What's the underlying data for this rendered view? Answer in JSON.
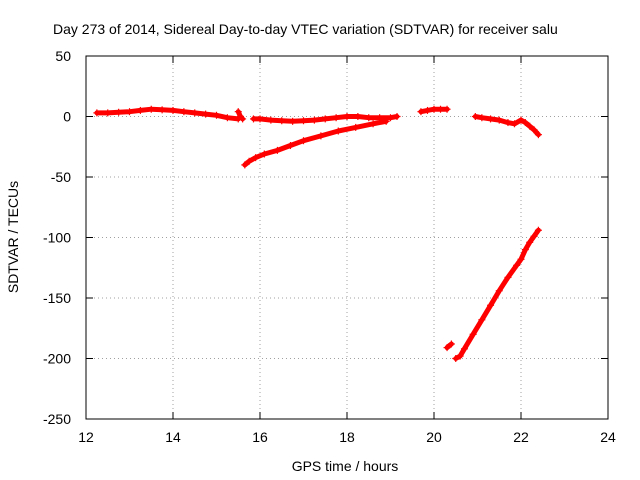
{
  "chart_data": {
    "type": "scatter",
    "title": "Day 273 of 2014, Sidereal Day-to-day VTEC variation (SDTVAR) for receiver salu",
    "xlabel": "GPS time / hours",
    "ylabel": "SDTVAR / TECUs",
    "xlim": [
      12,
      24
    ],
    "ylim": [
      -250,
      50
    ],
    "xticks": [
      12,
      14,
      16,
      18,
      20,
      22,
      24
    ],
    "yticks": [
      50,
      0,
      -50,
      -100,
      -150,
      -200,
      -250
    ],
    "grid": true,
    "grid_style": "dotted",
    "marker": "plus",
    "series_color": "#ff0000",
    "series": [
      {
        "segments": [
          {
            "x": [
              12.25,
              12.5,
              12.75,
              13.0,
              13.25,
              13.5,
              13.75,
              14.0,
              14.25,
              14.5,
              14.75,
              15.0,
              15.25,
              15.5
            ],
            "y": [
              3,
              3,
              3.5,
              4,
              5,
              6,
              5.5,
              5,
              4,
              3,
              2,
              1,
              -1,
              -2
            ]
          },
          {
            "x": [
              15.5,
              15.55,
              15.6
            ],
            "y": [
              4,
              0,
              -2
            ]
          },
          {
            "x": [
              15.65,
              15.75,
              15.9,
              16.1,
              16.4,
              16.7,
              17.0,
              17.4,
              17.8,
              18.2,
              18.6,
              18.9
            ],
            "y": [
              -40,
              -37,
              -34,
              -31,
              -28,
              -24,
              -20,
              -16,
              -12,
              -9,
              -6,
              -4
            ]
          },
          {
            "x": [
              15.85,
              16.0,
              16.25,
              16.5,
              16.75,
              17.0,
              17.25,
              17.5,
              17.75,
              18.0,
              18.25,
              18.5,
              18.75,
              19.0,
              19.15
            ],
            "y": [
              -2,
              -2,
              -3,
              -3.5,
              -4,
              -3.5,
              -3,
              -2,
              -1,
              0,
              0,
              -1,
              -1,
              -1,
              0
            ]
          },
          {
            "x": [
              19.7,
              19.85,
              20.0,
              20.15,
              20.3
            ],
            "y": [
              4,
              5,
              6,
              6,
              6
            ]
          },
          {
            "x": [
              20.3,
              20.4
            ],
            "y": [
              -191,
              -188
            ]
          },
          {
            "x": [
              20.5,
              20.6,
              20.7,
              20.9,
              21.1,
              21.3,
              21.5,
              21.7,
              21.9,
              22.0,
              22.1,
              22.2,
              22.3,
              22.4
            ],
            "y": [
              -200,
              -198,
              -192,
              -180,
              -168,
              -156,
              -144,
              -133,
              -123,
              -118,
              -110,
              -104,
              -99,
              -94
            ]
          },
          {
            "x": [
              20.95,
              21.1,
              21.3,
              21.5,
              21.7,
              21.85,
              22.0,
              22.1,
              22.2,
              22.3,
              22.4
            ],
            "y": [
              0,
              -1,
              -2,
              -3,
              -5,
              -6,
              -3,
              -5,
              -8,
              -11,
              -15
            ]
          }
        ]
      }
    ]
  }
}
